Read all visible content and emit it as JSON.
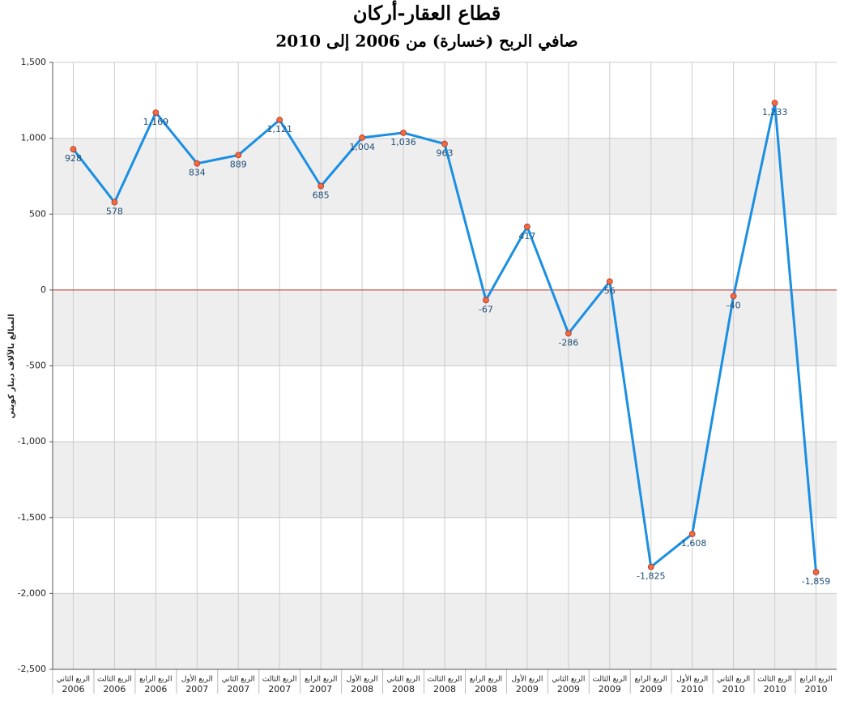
{
  "chart_data": {
    "type": "line",
    "title": "قطاع العقار-أركان",
    "subtitle": "صافي الربح (خسارة) من 2006 إلى 2010",
    "y_label": "المبالغ بالآلاف دينار كويتي",
    "categories": [
      [
        "الربع الثاني",
        "2006"
      ],
      [
        "الربع الثالث",
        "2006"
      ],
      [
        "الربع الرابع",
        "2006"
      ],
      [
        "الربع الأول",
        "2007"
      ],
      [
        "الربع الثاني",
        "2007"
      ],
      [
        "الربع الثالث",
        "2007"
      ],
      [
        "الربع الرابع",
        "2007"
      ],
      [
        "الربع الأول",
        "2008"
      ],
      [
        "الربع الثاني",
        "2008"
      ],
      [
        "الربع الثالث",
        "2008"
      ],
      [
        "الربع الرابع",
        "2008"
      ],
      [
        "الربع الأول",
        "2009"
      ],
      [
        "الربع الثاني",
        "2009"
      ],
      [
        "الربع الثالث",
        "2009"
      ],
      [
        "الربع الرابع",
        "2009"
      ],
      [
        "الربع الأول",
        "2010"
      ],
      [
        "الربع الثاني",
        "2010"
      ],
      [
        "الربع الثالث",
        "2010"
      ],
      [
        "الربع الرابع",
        "2010"
      ]
    ],
    "values": [
      928,
      578,
      1169,
      834,
      889,
      1121,
      685,
      1004,
      1036,
      963,
      -67,
      417,
      -286,
      56,
      -1825,
      -1608,
      -40,
      1233,
      -1859
    ],
    "value_labels": [
      "928",
      "578",
      "1,169",
      "834",
      "889",
      "1,121",
      "685",
      "1,004",
      "1,036",
      "963",
      "-67",
      "417",
      "-286",
      "56",
      "-1,825",
      "-1,608",
      "-40",
      "1,233",
      "-1,859"
    ],
    "color": "#1a8fe3",
    "marker_color": "#f26b3a",
    "zero_line_color": "#c0392b",
    "band_color": "#eeeeee",
    "ylim": [
      -2500,
      1500
    ],
    "yticks": [
      {
        "value": -2500,
        "label": "-2,500"
      },
      {
        "value": -2000,
        "label": "-2,000"
      },
      {
        "value": -1500,
        "label": "-1,500"
      },
      {
        "value": -1000,
        "label": "-1,000"
      },
      -500,
      0,
      500,
      {
        "value": 1000,
        "label": "1,000"
      },
      {
        "value": 1500,
        "label": "1,500"
      }
    ],
    "grid": true
  }
}
